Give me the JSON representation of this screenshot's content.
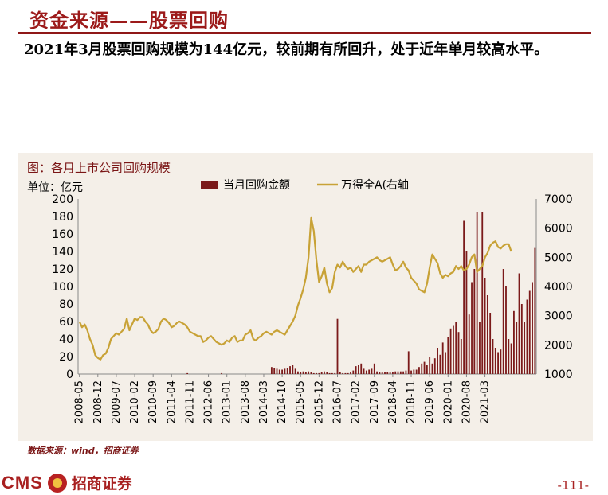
{
  "header": {
    "title": "资金来源——股票回购",
    "subtitle": "2021年3月股票回购规模为144亿元，较前期有所回升，处于近年单月较高水平。"
  },
  "figure": {
    "caption": "图：各月上市公司回购规模",
    "unit_label": "单位：亿元",
    "source": "数据来源：wind，招商证券"
  },
  "footer": {
    "logo_text": "CMS",
    "logo_cn": "招商证券",
    "page": "-111-"
  },
  "colors": {
    "bar": "#7b1a1a",
    "line": "#c8a236",
    "title": "#9c1a1a",
    "panel": "#f4efe8"
  },
  "chart_data": {
    "type": "bar",
    "x_ticks": [
      "2008-05",
      "2008-12",
      "2009-07",
      "2010-02",
      "2010-09",
      "2011-04",
      "2011-11",
      "2012-06",
      "2013-01",
      "2013-08",
      "2014-03",
      "2014-10",
      "2015-05",
      "2015-12",
      "2016-07",
      "2017-02",
      "2017-09",
      "2018-04",
      "2018-11",
      "2019-06",
      "2020-01",
      "2020-08",
      "2021-03"
    ],
    "y_left": {
      "ticks": [
        0,
        20,
        40,
        60,
        80,
        100,
        120,
        140,
        160,
        180,
        200
      ],
      "lim": [
        0,
        200
      ]
    },
    "y_right": {
      "ticks": [
        1000,
        2000,
        3000,
        4000,
        5000,
        6000,
        7000
      ],
      "lim": [
        1000,
        7000
      ]
    },
    "series": [
      {
        "name": "当月回购金额",
        "kind": "bar",
        "axis": "left",
        "start": "2008-05",
        "values": [
          0,
          0,
          0,
          0,
          0,
          0,
          0,
          0,
          0,
          0,
          0,
          0,
          0,
          0,
          0,
          0,
          0,
          0,
          0,
          0,
          0,
          0,
          0,
          0,
          0,
          0,
          0,
          0,
          0,
          0,
          0,
          0,
          0,
          0,
          0,
          0,
          0,
          0,
          0,
          0,
          0,
          1,
          0,
          0,
          0,
          0,
          0,
          0,
          0,
          0,
          0,
          0,
          0,
          0,
          1,
          0,
          0,
          0,
          0,
          0,
          0,
          0,
          0,
          0,
          0,
          0,
          0,
          0,
          0,
          0,
          0,
          0,
          0,
          8,
          7,
          6,
          5,
          5,
          6,
          7,
          9,
          10,
          6,
          3,
          2,
          3,
          2,
          3,
          2,
          1,
          1,
          1,
          2,
          3,
          2,
          1,
          1,
          1,
          63,
          2,
          1,
          1,
          1,
          2,
          4,
          9,
          10,
          12,
          6,
          4,
          5,
          6,
          12,
          3,
          2,
          2,
          2,
          2,
          2,
          2,
          3,
          3,
          3,
          3,
          4,
          26,
          4,
          5,
          5,
          8,
          12,
          14,
          10,
          20,
          12,
          18,
          30,
          22,
          36,
          25,
          42,
          52,
          55,
          60,
          48,
          40,
          175,
          140,
          68,
          105,
          120,
          185,
          60,
          185,
          110,
          90,
          70,
          40,
          30,
          25,
          28,
          120,
          100,
          40,
          35,
          72,
          60,
          115,
          80,
          60,
          85,
          95,
          105,
          144
        ]
      },
      {
        "name": "万得全A(右轴",
        "kind": "line",
        "axis": "right",
        "start": "2008-05",
        "values": [
          2800,
          2600,
          2700,
          2500,
          2200,
          2000,
          1650,
          1550,
          1500,
          1650,
          1700,
          1900,
          2200,
          2300,
          2400,
          2350,
          2450,
          2550,
          2900,
          2500,
          2700,
          2900,
          2850,
          2950,
          2950,
          2800,
          2700,
          2500,
          2400,
          2450,
          2550,
          2800,
          2900,
          2850,
          2750,
          2600,
          2650,
          2750,
          2800,
          2750,
          2700,
          2600,
          2450,
          2400,
          2350,
          2300,
          2300,
          2100,
          2150,
          2250,
          2300,
          2200,
          2100,
          2050,
          2000,
          2050,
          2150,
          2100,
          2250,
          2300,
          2100,
          2150,
          2150,
          2350,
          2400,
          2500,
          2200,
          2150,
          2250,
          2300,
          2400,
          2450,
          2400,
          2350,
          2450,
          2500,
          2450,
          2400,
          2350,
          2500,
          2650,
          2800,
          3000,
          3350,
          3600,
          3900,
          4300,
          5000,
          6350,
          5900,
          4900,
          4150,
          4350,
          4650,
          4100,
          3800,
          3950,
          4500,
          4750,
          4650,
          4850,
          4700,
          4600,
          4650,
          4500,
          4600,
          4700,
          4500,
          4750,
          4750,
          4850,
          4900,
          4950,
          5000,
          4900,
          4850,
          4900,
          4950,
          5000,
          4750,
          4550,
          4600,
          4700,
          4850,
          4650,
          4550,
          4300,
          4200,
          4100,
          3900,
          3850,
          3800,
          4100,
          4650,
          5100,
          4950,
          4800,
          4450,
          4300,
          4400,
          4350,
          4450,
          4500,
          4700,
          4600,
          4700,
          4550,
          4600,
          4750,
          5000,
          5100,
          4500,
          4600,
          4700,
          5000,
          5150,
          5400,
          5500,
          5550,
          5350,
          5300,
          5400,
          5450,
          5450,
          5200
        ]
      }
    ]
  }
}
